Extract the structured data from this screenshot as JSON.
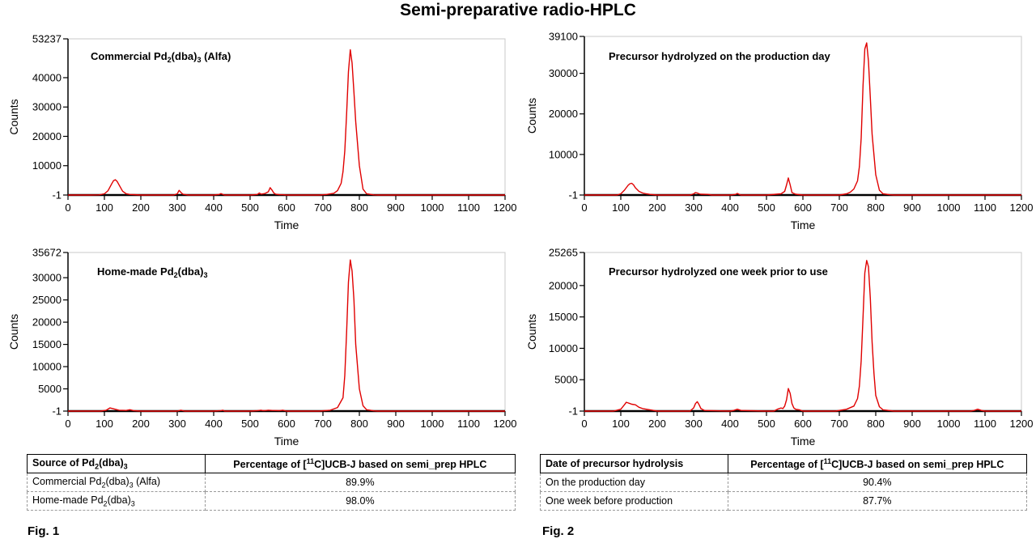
{
  "title": "Semi-preparative radio-HPLC",
  "chart_data": [
    {
      "type": "line",
      "title": "Commercial Pd2(dba)3 (Alfa)",
      "xlabel": "Time",
      "ylabel": "Counts",
      "xlim": [
        0,
        1200
      ],
      "ylim": [
        -1,
        53237
      ],
      "xticks": [
        0,
        100,
        200,
        300,
        400,
        500,
        600,
        700,
        800,
        900,
        1000,
        1100,
        1200
      ],
      "yticks": [
        -1,
        10000,
        20000,
        30000,
        40000,
        53237
      ],
      "color": "#e00000",
      "series": [
        {
          "x": [
            0,
            60,
            85,
            100,
            110,
            120,
            125,
            130,
            135,
            140,
            150,
            160,
            170,
            180,
            200,
            290,
            300,
            305,
            310,
            315,
            320,
            330,
            400,
            415,
            420,
            425,
            430,
            500,
            520,
            525,
            530,
            540,
            550,
            555,
            560,
            565,
            570,
            580,
            590,
            600,
            690,
            710,
            730,
            740,
            750,
            755,
            760,
            765,
            770,
            775,
            780,
            785,
            790,
            800,
            810,
            820,
            840,
            850,
            1200
          ],
          "y": [
            -1,
            -1,
            50,
            400,
            1500,
            3800,
            4900,
            5200,
            4600,
            3500,
            1300,
            400,
            200,
            150,
            -1,
            -1,
            400,
            1600,
            900,
            300,
            200,
            -1,
            -1,
            200,
            500,
            200,
            -1,
            -1,
            200,
            700,
            300,
            500,
            1100,
            2500,
            1700,
            700,
            300,
            150,
            100,
            -1,
            -1,
            200,
            600,
            1500,
            4000,
            8000,
            15000,
            28000,
            42000,
            49500,
            45000,
            35000,
            25000,
            10000,
            2000,
            400,
            50,
            -1,
            -1
          ]
        }
      ]
    },
    {
      "type": "line",
      "title": "Home-made Pd2(dba)3",
      "xlabel": "Time",
      "ylabel": "Counts",
      "xlim": [
        0,
        1200
      ],
      "ylim": [
        -1,
        35672
      ],
      "xticks": [
        0,
        100,
        200,
        300,
        400,
        500,
        600,
        700,
        800,
        900,
        1000,
        1100,
        1200
      ],
      "yticks": [
        -1,
        5000,
        10000,
        15000,
        20000,
        25000,
        30000,
        35672
      ],
      "color": "#e00000",
      "series": [
        {
          "x": [
            0,
            90,
            105,
            115,
            125,
            140,
            160,
            170,
            180,
            200,
            300,
            305,
            310,
            315,
            320,
            400,
            420,
            425,
            430,
            500,
            520,
            530,
            535,
            540,
            550,
            560,
            580,
            590,
            600,
            690,
            720,
            740,
            755,
            760,
            765,
            770,
            775,
            780,
            785,
            790,
            800,
            810,
            820,
            840,
            850,
            1200
          ],
          "y": [
            -1,
            -1,
            200,
            700,
            500,
            200,
            150,
            300,
            100,
            -1,
            -1,
            100,
            200,
            100,
            -1,
            -1,
            100,
            200,
            -1,
            -1,
            100,
            200,
            100,
            100,
            200,
            150,
            100,
            200,
            -1,
            -1,
            200,
            800,
            3000,
            8000,
            18000,
            29000,
            34000,
            31500,
            25000,
            15000,
            5000,
            1200,
            300,
            50,
            -1,
            -1
          ]
        }
      ]
    },
    {
      "type": "line",
      "title": "Precursor hydrolyzed on the production day",
      "xlabel": "Time",
      "ylabel": "Counts",
      "xlim": [
        0,
        1200
      ],
      "ylim": [
        -1,
        39100
      ],
      "xticks": [
        0,
        100,
        200,
        300,
        400,
        500,
        600,
        700,
        800,
        900,
        1000,
        1100,
        1200
      ],
      "yticks": [
        -1,
        10000,
        20000,
        30000,
        39100
      ],
      "color": "#e00000",
      "series": [
        {
          "x": [
            0,
            90,
            100,
            110,
            120,
            125,
            130,
            135,
            140,
            150,
            160,
            170,
            180,
            200,
            290,
            300,
            305,
            310,
            315,
            320,
            340,
            350,
            400,
            415,
            420,
            425,
            430,
            500,
            540,
            550,
            555,
            560,
            565,
            570,
            580,
            600,
            700,
            720,
            730,
            740,
            750,
            755,
            760,
            765,
            770,
            775,
            780,
            785,
            790,
            800,
            810,
            820,
            840,
            850,
            1200
          ],
          "y": [
            -1,
            -1,
            300,
            1200,
            2400,
            2800,
            2900,
            2500,
            1800,
            900,
            500,
            300,
            150,
            -1,
            -1,
            300,
            600,
            500,
            300,
            200,
            150,
            -1,
            -1,
            150,
            400,
            150,
            -1,
            -1,
            300,
            900,
            2500,
            4200,
            2500,
            600,
            200,
            -1,
            -1,
            300,
            700,
            1500,
            3500,
            7000,
            14000,
            27000,
            36000,
            37500,
            33000,
            24000,
            15000,
            5000,
            1200,
            300,
            50,
            -1,
            -1
          ]
        }
      ]
    },
    {
      "type": "line",
      "title": "Precursor hydrolyzed one week prior to use",
      "xlabel": "Time",
      "ylabel": "Counts",
      "xlim": [
        0,
        1200
      ],
      "ylim": [
        -1,
        25265
      ],
      "xticks": [
        0,
        100,
        200,
        300,
        400,
        500,
        600,
        700,
        800,
        900,
        1000,
        1100,
        1200
      ],
      "yticks": [
        -1,
        5000,
        10000,
        15000,
        20000,
        25265
      ],
      "color": "#e00000",
      "series": [
        {
          "x": [
            0,
            80,
            100,
            110,
            115,
            120,
            125,
            130,
            140,
            150,
            160,
            170,
            180,
            190,
            200,
            290,
            300,
            305,
            310,
            315,
            320,
            330,
            400,
            410,
            420,
            430,
            500,
            520,
            530,
            540,
            545,
            550,
            555,
            560,
            565,
            570,
            575,
            580,
            590,
            600,
            690,
            720,
            740,
            750,
            755,
            760,
            765,
            770,
            775,
            780,
            785,
            790,
            795,
            800,
            810,
            820,
            850,
            1060,
            1070,
            1080,
            1090,
            1100,
            1200
          ],
          "y": [
            -1,
            -1,
            300,
            1000,
            1400,
            1300,
            1200,
            1100,
            1000,
            600,
            400,
            300,
            200,
            100,
            -1,
            -1,
            500,
            1200,
            1500,
            1000,
            400,
            100,
            -1,
            100,
            300,
            100,
            -1,
            -1,
            300,
            500,
            400,
            800,
            1800,
            3600,
            2800,
            1200,
            500,
            300,
            200,
            -1,
            -1,
            300,
            800,
            2000,
            4000,
            8000,
            15000,
            22000,
            24000,
            23000,
            18000,
            11000,
            6000,
            2500,
            700,
            200,
            -1,
            -1,
            100,
            300,
            100,
            -1,
            -1
          ]
        }
      ]
    }
  ],
  "panels": [
    {
      "label_main": "Commercial Pd",
      "label_sub1": "2",
      "label_mid": "(dba)",
      "label_sub2": "3",
      "label_end": " (Alfa)"
    },
    {
      "label_main": "Home-made Pd",
      "label_sub1": "2",
      "label_mid": "(dba)",
      "label_sub2": "3",
      "label_end": ""
    },
    {
      "label": "Precursor hydrolyzed on the production day"
    },
    {
      "label": "Precursor hydrolyzed one week prior to use"
    }
  ],
  "table1": {
    "header1": {
      "a": "Source of Pd",
      "s1": "2",
      "b": "(dba)",
      "s2": "3"
    },
    "header2": {
      "a": "Percentage of [",
      "sup": "11",
      "b": "C]UCB-J based on semi_prep HPLC"
    },
    "rows": [
      {
        "a": "Commercial Pd",
        "s1": "2",
        "b": "(dba)",
        "s2": "3",
        "c": " (Alfa)",
        "value": "89.9%"
      },
      {
        "a": "Home-made Pd",
        "s1": "2",
        "b": "(dba)",
        "s2": "3",
        "c": "",
        "value": "98.0%"
      }
    ]
  },
  "table2": {
    "header1": "Date of precursor hydrolysis",
    "header2": {
      "a": "Percentage of [",
      "sup": "11",
      "b": "C]UCB-J based on semi_prep HPLC"
    },
    "rows": [
      {
        "label": "On the production day",
        "value": "90.4%"
      },
      {
        "label": "One week before production",
        "value": "87.7%"
      }
    ]
  },
  "fig1": "Fig. 1",
  "fig2": "Fig. 2"
}
